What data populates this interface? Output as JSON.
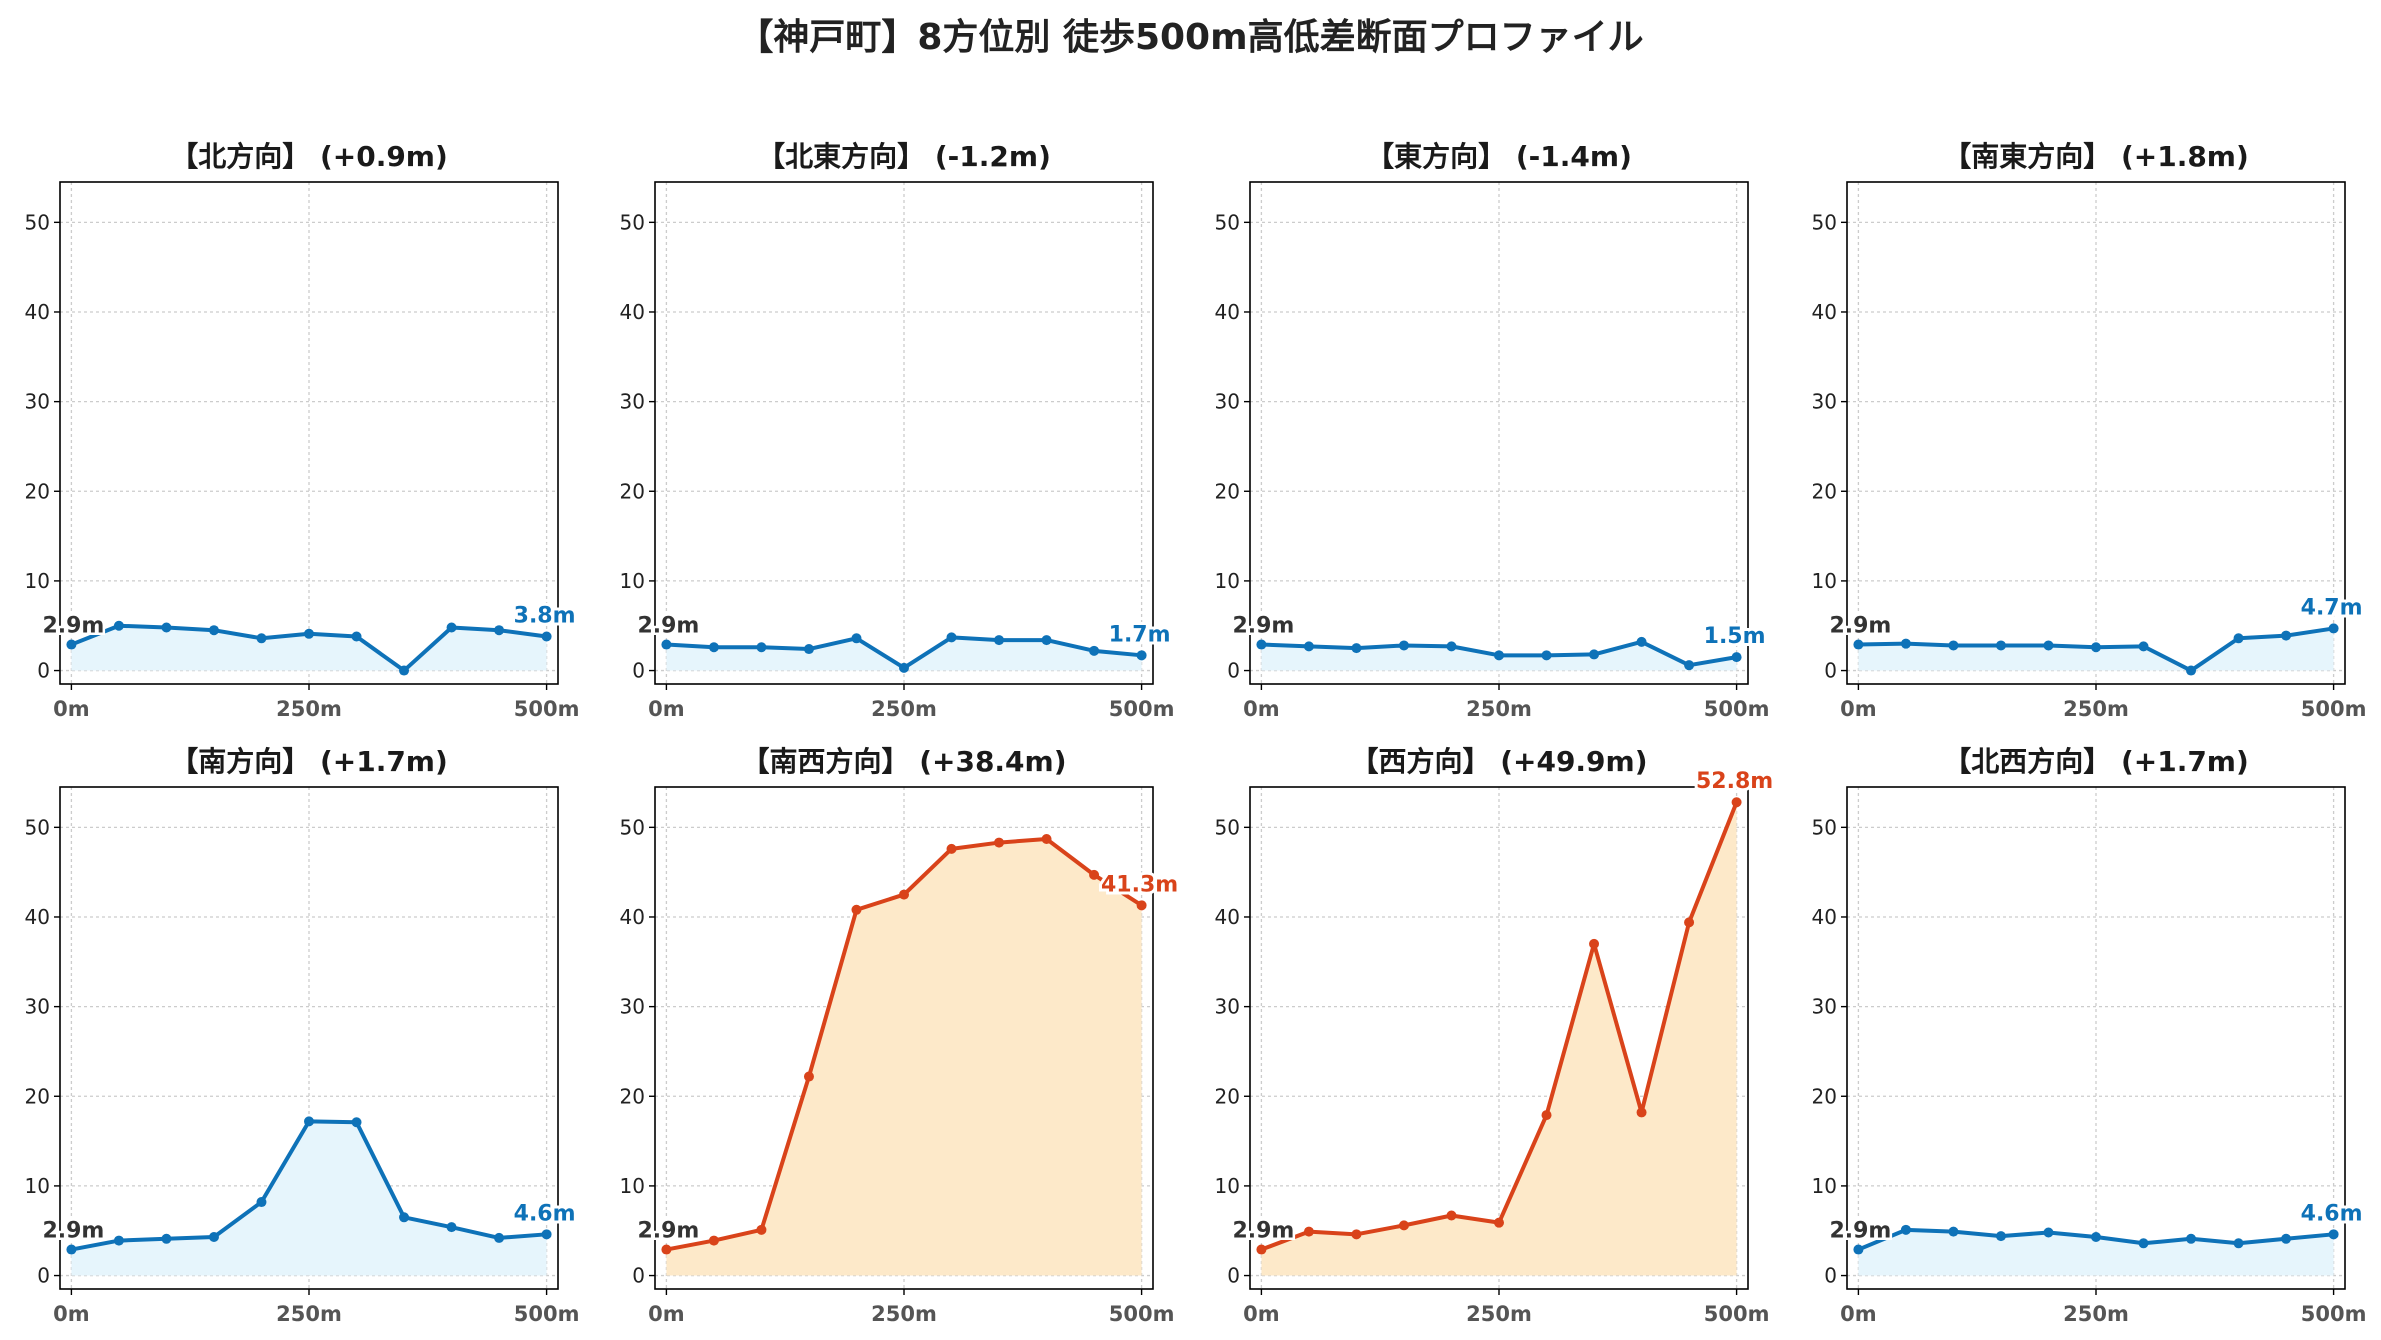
{
  "title": "【神戸町】8方位別 徒歩500m高低差断面プロファイル",
  "colors": {
    "flat": "#0e72b8",
    "flat_fill": "#e6f5fc",
    "steep": "#d9431a",
    "steep_fill": "#fde9c9",
    "grid": "#cccccc",
    "start_label": "#333333"
  },
  "chart_data": [
    {
      "type": "line",
      "title": "【北方向】 (+0.9m)",
      "style": "flat",
      "x": [
        0,
        50,
        100,
        150,
        200,
        250,
        300,
        350,
        400,
        450,
        500
      ],
      "y": [
        2.9,
        5.0,
        4.8,
        4.5,
        3.6,
        4.1,
        3.8,
        0.0,
        4.8,
        4.5,
        3.8
      ],
      "start_label": "2.9m",
      "end_label": "3.8m",
      "xticks": [
        "0m",
        "250m",
        "500m"
      ],
      "yticks": [
        0,
        10,
        20,
        30,
        40,
        50
      ],
      "ylim": [
        -1.5,
        54.5
      ],
      "xlim": [
        -12,
        512
      ],
      "grid": true
    },
    {
      "type": "line",
      "title": "【北東方向】 (-1.2m)",
      "style": "flat",
      "x": [
        0,
        50,
        100,
        150,
        200,
        250,
        300,
        350,
        400,
        450,
        500
      ],
      "y": [
        2.9,
        2.6,
        2.6,
        2.4,
        3.6,
        0.3,
        3.7,
        3.4,
        3.4,
        2.2,
        1.7
      ],
      "start_label": "2.9m",
      "end_label": "1.7m",
      "xticks": [
        "0m",
        "250m",
        "500m"
      ],
      "yticks": [
        0,
        10,
        20,
        30,
        40,
        50
      ],
      "ylim": [
        -1.5,
        54.5
      ],
      "xlim": [
        -12,
        512
      ],
      "grid": true
    },
    {
      "type": "line",
      "title": "【東方向】 (-1.4m)",
      "style": "flat",
      "x": [
        0,
        50,
        100,
        150,
        200,
        250,
        300,
        350,
        400,
        450,
        500
      ],
      "y": [
        2.9,
        2.7,
        2.5,
        2.8,
        2.7,
        1.7,
        1.7,
        1.8,
        3.2,
        0.6,
        1.5
      ],
      "start_label": "2.9m",
      "end_label": "1.5m",
      "xticks": [
        "0m",
        "250m",
        "500m"
      ],
      "yticks": [
        0,
        10,
        20,
        30,
        40,
        50
      ],
      "ylim": [
        -1.5,
        54.5
      ],
      "xlim": [
        -12,
        512
      ],
      "grid": true
    },
    {
      "type": "line",
      "title": "【南東方向】 (+1.8m)",
      "style": "flat",
      "x": [
        0,
        50,
        100,
        150,
        200,
        250,
        300,
        350,
        400,
        450,
        500
      ],
      "y": [
        2.9,
        3.0,
        2.8,
        2.8,
        2.8,
        2.6,
        2.7,
        0.0,
        3.6,
        3.9,
        4.7
      ],
      "start_label": "2.9m",
      "end_label": "4.7m",
      "xticks": [
        "0m",
        "250m",
        "500m"
      ],
      "yticks": [
        0,
        10,
        20,
        30,
        40,
        50
      ],
      "ylim": [
        -1.5,
        54.5
      ],
      "xlim": [
        -12,
        512
      ],
      "grid": true
    },
    {
      "type": "line",
      "title": "【南方向】 (+1.7m)",
      "style": "flat",
      "x": [
        0,
        50,
        100,
        150,
        200,
        250,
        300,
        350,
        400,
        450,
        500
      ],
      "y": [
        2.9,
        3.9,
        4.1,
        4.3,
        8.2,
        17.2,
        17.1,
        6.5,
        5.4,
        4.2,
        4.6
      ],
      "start_label": "2.9m",
      "end_label": "4.6m",
      "xticks": [
        "0m",
        "250m",
        "500m"
      ],
      "yticks": [
        0,
        10,
        20,
        30,
        40,
        50
      ],
      "ylim": [
        -1.5,
        54.5
      ],
      "xlim": [
        -12,
        512
      ],
      "grid": true
    },
    {
      "type": "line",
      "title": "【南西方向】 (+38.4m)",
      "style": "steep",
      "x": [
        0,
        50,
        100,
        150,
        200,
        250,
        300,
        350,
        400,
        450,
        500
      ],
      "y": [
        2.9,
        3.9,
        5.1,
        22.2,
        40.8,
        42.5,
        47.6,
        48.3,
        48.7,
        44.7,
        41.3
      ],
      "start_label": "2.9m",
      "end_label": "41.3m",
      "xticks": [
        "0m",
        "250m",
        "500m"
      ],
      "yticks": [
        0,
        10,
        20,
        30,
        40,
        50
      ],
      "ylim": [
        -1.5,
        54.5
      ],
      "xlim": [
        -12,
        512
      ],
      "grid": true
    },
    {
      "type": "line",
      "title": "【西方向】 (+49.9m)",
      "style": "steep",
      "x": [
        0,
        50,
        100,
        150,
        200,
        250,
        300,
        350,
        400,
        450,
        500
      ],
      "y": [
        2.9,
        4.9,
        4.6,
        5.6,
        6.7,
        5.9,
        17.9,
        37.0,
        18.2,
        39.4,
        52.8
      ],
      "start_label": "2.9m",
      "end_label": "52.8m",
      "xticks": [
        "0m",
        "250m",
        "500m"
      ],
      "yticks": [
        0,
        10,
        20,
        30,
        40,
        50
      ],
      "ylim": [
        -1.5,
        54.5
      ],
      "xlim": [
        -12,
        512
      ],
      "grid": true
    },
    {
      "type": "line",
      "title": "【北西方向】 (+1.7m)",
      "style": "flat",
      "x": [
        0,
        50,
        100,
        150,
        200,
        250,
        300,
        350,
        400,
        450,
        500
      ],
      "y": [
        2.9,
        5.1,
        4.9,
        4.4,
        4.8,
        4.3,
        3.6,
        4.1,
        3.6,
        4.1,
        4.6
      ],
      "start_label": "2.9m",
      "end_label": "4.6m",
      "xticks": [
        "0m",
        "250m",
        "500m"
      ],
      "yticks": [
        0,
        10,
        20,
        30,
        40,
        50
      ],
      "ylim": [
        -1.5,
        54.5
      ],
      "xlim": [
        -12,
        512
      ],
      "grid": true
    }
  ]
}
